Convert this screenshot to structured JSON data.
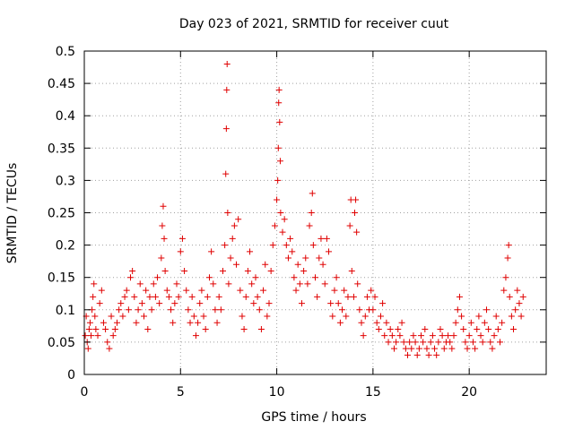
{
  "chart_data": {
    "type": "scatter",
    "title": "Day 023 of 2021, SRMTID for receiver cuut",
    "xlabel": "GPS time / hours",
    "ylabel": "SRMTID / TECUs",
    "xlim": [
      0,
      24
    ],
    "ylim": [
      0,
      0.5
    ],
    "x_ticks": [
      0,
      5,
      10,
      15,
      20
    ],
    "x_tick_labels": [
      "0",
      "5",
      "10",
      "15",
      "20"
    ],
    "y_ticks": [
      0,
      0.05,
      0.1,
      0.15,
      0.2,
      0.25,
      0.3,
      0.35,
      0.4,
      0.45,
      0.5
    ],
    "y_tick_labels": [
      "0",
      "0.05",
      "0.1",
      "0.15",
      "0.2",
      "0.25",
      "0.3",
      "0.35",
      "0.4",
      "0.45",
      "0.5"
    ],
    "grid": true,
    "marker": "+",
    "color": "#e00000",
    "series": [
      {
        "name": "SRMTID",
        "points": [
          [
            0.05,
            0.06
          ],
          [
            0.1,
            0.09
          ],
          [
            0.15,
            0.05
          ],
          [
            0.2,
            0.04
          ],
          [
            0.25,
            0.07
          ],
          [
            0.3,
            0.08
          ],
          [
            0.35,
            0.06
          ],
          [
            0.4,
            0.1
          ],
          [
            0.45,
            0.12
          ],
          [
            0.5,
            0.14
          ],
          [
            0.55,
            0.09
          ],
          [
            0.6,
            0.07
          ],
          [
            0.7,
            0.06
          ],
          [
            0.8,
            0.11
          ],
          [
            0.9,
            0.13
          ],
          [
            1.0,
            0.08
          ],
          [
            1.1,
            0.07
          ],
          [
            1.2,
            0.05
          ],
          [
            1.3,
            0.04
          ],
          [
            1.4,
            0.09
          ],
          [
            1.5,
            0.06
          ],
          [
            1.6,
            0.07
          ],
          [
            1.7,
            0.08
          ],
          [
            1.8,
            0.1
          ],
          [
            1.9,
            0.11
          ],
          [
            2.0,
            0.09
          ],
          [
            2.1,
            0.12
          ],
          [
            2.2,
            0.13
          ],
          [
            2.3,
            0.1
          ],
          [
            2.4,
            0.15
          ],
          [
            2.5,
            0.16
          ],
          [
            2.6,
            0.12
          ],
          [
            2.7,
            0.08
          ],
          [
            2.8,
            0.1
          ],
          [
            2.9,
            0.14
          ],
          [
            3.0,
            0.11
          ],
          [
            3.1,
            0.09
          ],
          [
            3.2,
            0.13
          ],
          [
            3.3,
            0.07
          ],
          [
            3.4,
            0.12
          ],
          [
            3.5,
            0.1
          ],
          [
            3.6,
            0.14
          ],
          [
            3.7,
            0.12
          ],
          [
            3.8,
            0.15
          ],
          [
            3.9,
            0.11
          ],
          [
            4.0,
            0.18
          ],
          [
            4.05,
            0.23
          ],
          [
            4.1,
            0.26
          ],
          [
            4.15,
            0.21
          ],
          [
            4.2,
            0.16
          ],
          [
            4.3,
            0.13
          ],
          [
            4.4,
            0.12
          ],
          [
            4.5,
            0.1
          ],
          [
            4.6,
            0.08
          ],
          [
            4.7,
            0.11
          ],
          [
            4.8,
            0.14
          ],
          [
            4.9,
            0.12
          ],
          [
            5.0,
            0.19
          ],
          [
            5.1,
            0.21
          ],
          [
            5.2,
            0.16
          ],
          [
            5.3,
            0.13
          ],
          [
            5.4,
            0.1
          ],
          [
            5.5,
            0.08
          ],
          [
            5.6,
            0.12
          ],
          [
            5.7,
            0.09
          ],
          [
            5.8,
            0.06
          ],
          [
            5.9,
            0.08
          ],
          [
            6.0,
            0.11
          ],
          [
            6.1,
            0.13
          ],
          [
            6.2,
            0.09
          ],
          [
            6.3,
            0.07
          ],
          [
            6.4,
            0.12
          ],
          [
            6.5,
            0.15
          ],
          [
            6.6,
            0.19
          ],
          [
            6.7,
            0.14
          ],
          [
            6.8,
            0.1
          ],
          [
            6.9,
            0.08
          ],
          [
            7.0,
            0.12
          ],
          [
            7.1,
            0.1
          ],
          [
            7.2,
            0.16
          ],
          [
            7.3,
            0.2
          ],
          [
            7.35,
            0.31
          ],
          [
            7.38,
            0.38
          ],
          [
            7.4,
            0.44
          ],
          [
            7.42,
            0.48
          ],
          [
            7.45,
            0.25
          ],
          [
            7.5,
            0.14
          ],
          [
            7.6,
            0.18
          ],
          [
            7.7,
            0.21
          ],
          [
            7.8,
            0.23
          ],
          [
            7.9,
            0.17
          ],
          [
            8.0,
            0.24
          ],
          [
            8.1,
            0.13
          ],
          [
            8.2,
            0.09
          ],
          [
            8.3,
            0.07
          ],
          [
            8.4,
            0.12
          ],
          [
            8.5,
            0.16
          ],
          [
            8.6,
            0.19
          ],
          [
            8.7,
            0.14
          ],
          [
            8.8,
            0.11
          ],
          [
            8.9,
            0.15
          ],
          [
            9.0,
            0.12
          ],
          [
            9.1,
            0.1
          ],
          [
            9.2,
            0.07
          ],
          [
            9.3,
            0.13
          ],
          [
            9.4,
            0.17
          ],
          [
            9.5,
            0.09
          ],
          [
            9.6,
            0.11
          ],
          [
            9.7,
            0.16
          ],
          [
            9.8,
            0.2
          ],
          [
            9.9,
            0.23
          ],
          [
            10.0,
            0.27
          ],
          [
            10.05,
            0.3
          ],
          [
            10.08,
            0.35
          ],
          [
            10.1,
            0.42
          ],
          [
            10.12,
            0.44
          ],
          [
            10.15,
            0.39
          ],
          [
            10.18,
            0.33
          ],
          [
            10.2,
            0.25
          ],
          [
            10.3,
            0.22
          ],
          [
            10.4,
            0.24
          ],
          [
            10.5,
            0.2
          ],
          [
            10.6,
            0.18
          ],
          [
            10.7,
            0.21
          ],
          [
            10.8,
            0.19
          ],
          [
            10.9,
            0.15
          ],
          [
            11.0,
            0.13
          ],
          [
            11.1,
            0.17
          ],
          [
            11.2,
            0.14
          ],
          [
            11.3,
            0.11
          ],
          [
            11.4,
            0.16
          ],
          [
            11.5,
            0.18
          ],
          [
            11.6,
            0.14
          ],
          [
            11.7,
            0.23
          ],
          [
            11.8,
            0.25
          ],
          [
            11.85,
            0.28
          ],
          [
            11.9,
            0.2
          ],
          [
            12.0,
            0.15
          ],
          [
            12.1,
            0.12
          ],
          [
            12.2,
            0.18
          ],
          [
            12.3,
            0.21
          ],
          [
            12.4,
            0.17
          ],
          [
            12.5,
            0.14
          ],
          [
            12.6,
            0.21
          ],
          [
            12.7,
            0.19
          ],
          [
            12.8,
            0.11
          ],
          [
            12.9,
            0.09
          ],
          [
            13.0,
            0.13
          ],
          [
            13.1,
            0.15
          ],
          [
            13.2,
            0.11
          ],
          [
            13.3,
            0.08
          ],
          [
            13.4,
            0.1
          ],
          [
            13.5,
            0.13
          ],
          [
            13.6,
            0.09
          ],
          [
            13.7,
            0.12
          ],
          [
            13.8,
            0.23
          ],
          [
            13.85,
            0.27
          ],
          [
            13.9,
            0.16
          ],
          [
            14.0,
            0.12
          ],
          [
            14.05,
            0.25
          ],
          [
            14.1,
            0.27
          ],
          [
            14.15,
            0.22
          ],
          [
            14.2,
            0.14
          ],
          [
            14.3,
            0.1
          ],
          [
            14.4,
            0.08
          ],
          [
            14.5,
            0.06
          ],
          [
            14.6,
            0.09
          ],
          [
            14.7,
            0.12
          ],
          [
            14.8,
            0.1
          ],
          [
            14.9,
            0.13
          ],
          [
            15.0,
            0.1
          ],
          [
            15.1,
            0.12
          ],
          [
            15.2,
            0.08
          ],
          [
            15.3,
            0.07
          ],
          [
            15.4,
            0.09
          ],
          [
            15.5,
            0.11
          ],
          [
            15.6,
            0.06
          ],
          [
            15.7,
            0.08
          ],
          [
            15.8,
            0.05
          ],
          [
            15.9,
            0.07
          ],
          [
            16.0,
            0.06
          ],
          [
            16.1,
            0.04
          ],
          [
            16.2,
            0.05
          ],
          [
            16.3,
            0.07
          ],
          [
            16.4,
            0.06
          ],
          [
            16.5,
            0.08
          ],
          [
            16.6,
            0.05
          ],
          [
            16.7,
            0.04
          ],
          [
            16.8,
            0.03
          ],
          [
            16.9,
            0.05
          ],
          [
            17.0,
            0.04
          ],
          [
            17.1,
            0.06
          ],
          [
            17.2,
            0.05
          ],
          [
            17.3,
            0.03
          ],
          [
            17.4,
            0.04
          ],
          [
            17.5,
            0.06
          ],
          [
            17.6,
            0.05
          ],
          [
            17.7,
            0.07
          ],
          [
            17.8,
            0.04
          ],
          [
            17.9,
            0.03
          ],
          [
            18.0,
            0.05
          ],
          [
            18.1,
            0.06
          ],
          [
            18.2,
            0.04
          ],
          [
            18.3,
            0.03
          ],
          [
            18.4,
            0.05
          ],
          [
            18.5,
            0.07
          ],
          [
            18.6,
            0.06
          ],
          [
            18.7,
            0.04
          ],
          [
            18.8,
            0.05
          ],
          [
            18.9,
            0.06
          ],
          [
            19.0,
            0.05
          ],
          [
            19.1,
            0.04
          ],
          [
            19.2,
            0.06
          ],
          [
            19.3,
            0.08
          ],
          [
            19.4,
            0.1
          ],
          [
            19.5,
            0.12
          ],
          [
            19.6,
            0.09
          ],
          [
            19.7,
            0.07
          ],
          [
            19.8,
            0.05
          ],
          [
            19.9,
            0.04
          ],
          [
            20.0,
            0.06
          ],
          [
            20.1,
            0.08
          ],
          [
            20.2,
            0.05
          ],
          [
            20.3,
            0.04
          ],
          [
            20.4,
            0.07
          ],
          [
            20.5,
            0.09
          ],
          [
            20.6,
            0.06
          ],
          [
            20.7,
            0.05
          ],
          [
            20.8,
            0.08
          ],
          [
            20.9,
            0.1
          ],
          [
            21.0,
            0.07
          ],
          [
            21.1,
            0.05
          ],
          [
            21.2,
            0.04
          ],
          [
            21.3,
            0.06
          ],
          [
            21.4,
            0.09
          ],
          [
            21.5,
            0.07
          ],
          [
            21.6,
            0.05
          ],
          [
            21.7,
            0.08
          ],
          [
            21.8,
            0.13
          ],
          [
            21.9,
            0.15
          ],
          [
            22.0,
            0.18
          ],
          [
            22.05,
            0.2
          ],
          [
            22.1,
            0.12
          ],
          [
            22.2,
            0.09
          ],
          [
            22.3,
            0.07
          ],
          [
            22.4,
            0.1
          ],
          [
            22.5,
            0.13
          ],
          [
            22.6,
            0.11
          ],
          [
            22.7,
            0.09
          ],
          [
            22.8,
            0.12
          ]
        ]
      }
    ]
  }
}
